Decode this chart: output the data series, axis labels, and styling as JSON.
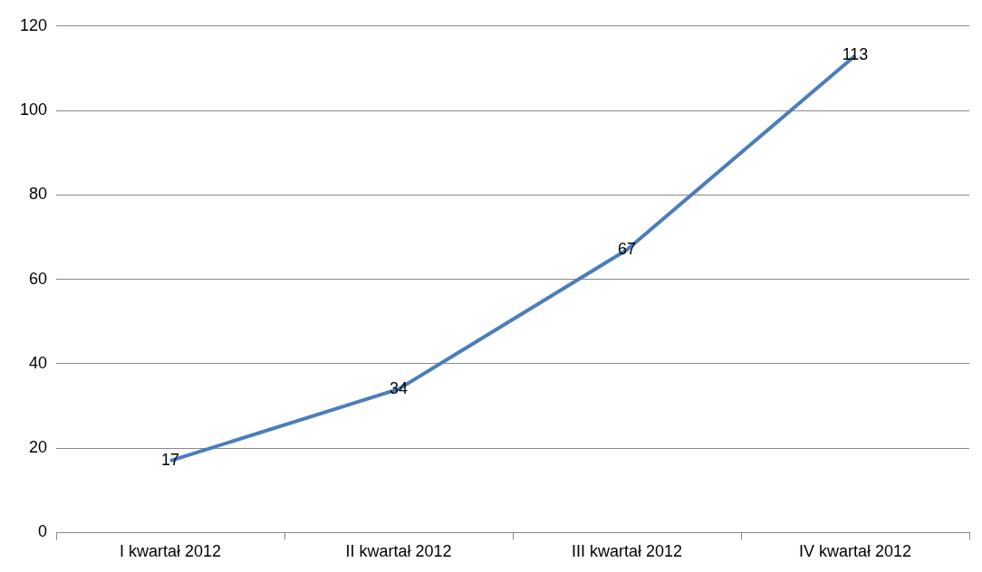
{
  "chart_data": {
    "type": "line",
    "categories": [
      "I kwartał 2012",
      "II kwartał 2012",
      "III kwartał 2012",
      "IV kwartał 2012"
    ],
    "series": [
      {
        "color": "#4a7ebb",
        "values": [
          17,
          34,
          67,
          113
        ]
      }
    ],
    "ylim": [
      0,
      120
    ],
    "yticks": [
      0,
      20,
      40,
      60,
      80,
      100,
      120
    ],
    "grid": "y",
    "legend": false,
    "marker": "none",
    "line_style": "solid",
    "data_labels": true
  }
}
